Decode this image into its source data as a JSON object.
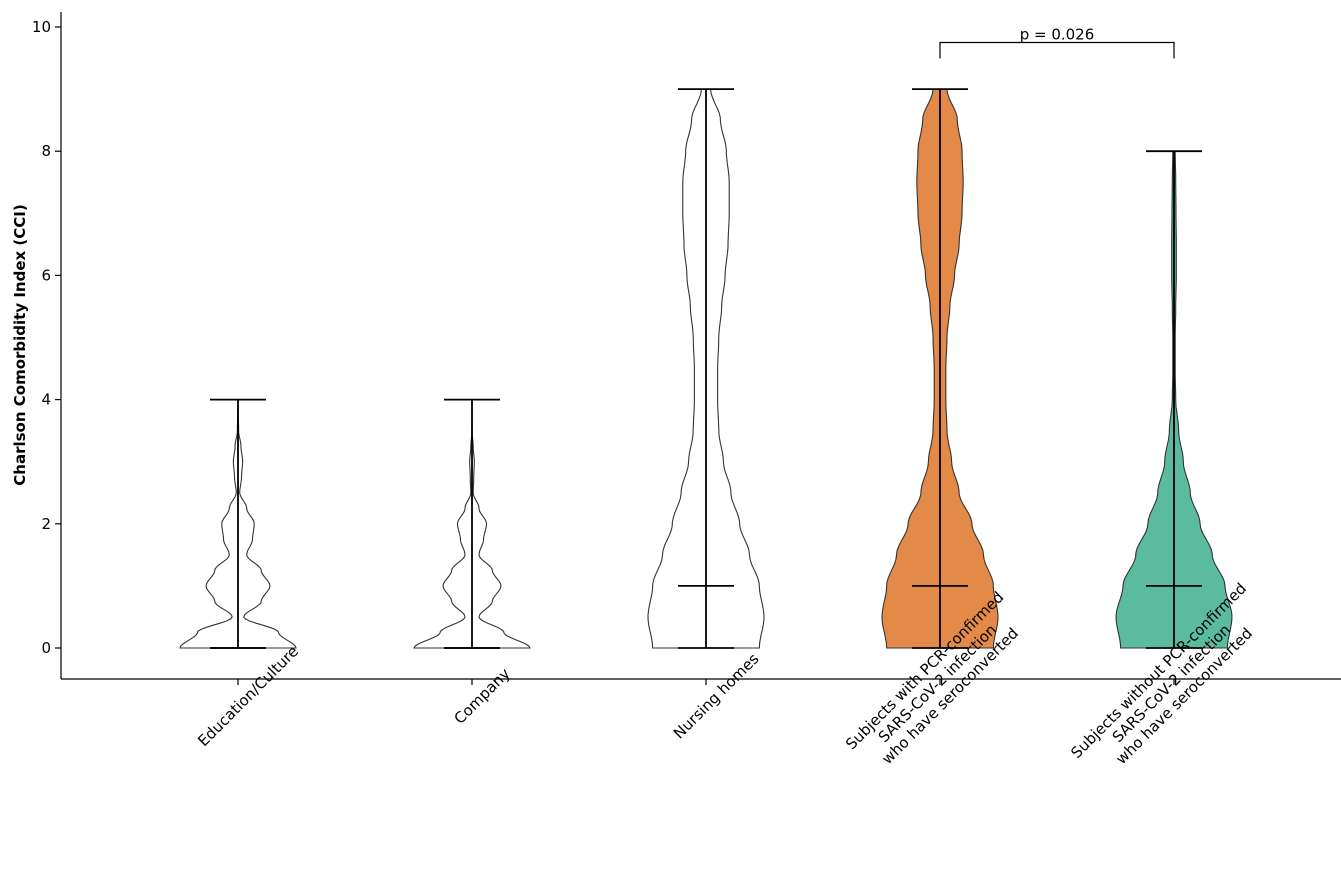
{
  "chart_data": {
    "type": "violin",
    "title": "",
    "ylabel": "Charlson Comorbidity Index (CCI)",
    "ylim": [
      -0.5,
      10.25
    ],
    "yticks": [
      0,
      2,
      4,
      6,
      8,
      10
    ],
    "categories": [
      "Education/Culture",
      "Company",
      "Nursing homes",
      "Subjects with PCR-confirmed\nSARS-CoV-2 infection\nwho have seroconverted",
      "Subjects without PCR-confirmed\nSARS-CoV-2 infection\nwho have seroconverted"
    ],
    "series": [
      {
        "fill": "none",
        "min": 0,
        "median": 0,
        "max": 4,
        "density": [
          [
            0,
            1.0
          ],
          [
            0.25,
            0.7
          ],
          [
            0.5,
            0.1
          ],
          [
            0.75,
            0.4
          ],
          [
            1,
            0.55
          ],
          [
            1.25,
            0.4
          ],
          [
            1.5,
            0.15
          ],
          [
            1.75,
            0.25
          ],
          [
            2,
            0.28
          ],
          [
            2.25,
            0.15
          ],
          [
            2.5,
            0.03
          ],
          [
            2.75,
            0.06
          ],
          [
            3,
            0.08
          ],
          [
            3.25,
            0.05
          ],
          [
            3.5,
            0.01
          ],
          [
            4,
            0.0
          ]
        ]
      },
      {
        "fill": "none",
        "min": 0,
        "median": 0,
        "max": 4,
        "density": [
          [
            0,
            1.0
          ],
          [
            0.25,
            0.55
          ],
          [
            0.5,
            0.12
          ],
          [
            0.75,
            0.35
          ],
          [
            1,
            0.5
          ],
          [
            1.25,
            0.35
          ],
          [
            1.5,
            0.12
          ],
          [
            1.75,
            0.2
          ],
          [
            2,
            0.25
          ],
          [
            2.25,
            0.12
          ],
          [
            2.5,
            0.02
          ],
          [
            2.75,
            0.03
          ],
          [
            3,
            0.04
          ],
          [
            3.25,
            0.02
          ],
          [
            3.5,
            0.0
          ],
          [
            4,
            0.0
          ]
        ]
      },
      {
        "fill": "none",
        "min": 0,
        "median": 1,
        "max": 9,
        "density": [
          [
            0,
            0.92
          ],
          [
            0.5,
            1.0
          ],
          [
            1,
            0.92
          ],
          [
            1.5,
            0.75
          ],
          [
            2,
            0.58
          ],
          [
            2.5,
            0.43
          ],
          [
            3,
            0.3
          ],
          [
            3.5,
            0.22
          ],
          [
            4,
            0.2
          ],
          [
            4.5,
            0.2
          ],
          [
            5,
            0.22
          ],
          [
            5.5,
            0.27
          ],
          [
            6,
            0.33
          ],
          [
            6.5,
            0.38
          ],
          [
            7,
            0.4
          ],
          [
            7.5,
            0.4
          ],
          [
            8,
            0.35
          ],
          [
            8.5,
            0.25
          ],
          [
            9,
            0.08
          ]
        ]
      },
      {
        "fill": "#e38a48",
        "min": 0,
        "median": 1,
        "max": 9,
        "density": [
          [
            0,
            0.92
          ],
          [
            0.5,
            1.0
          ],
          [
            1,
            0.92
          ],
          [
            1.5,
            0.75
          ],
          [
            2,
            0.55
          ],
          [
            2.5,
            0.33
          ],
          [
            3,
            0.2
          ],
          [
            3.5,
            0.12
          ],
          [
            4,
            0.1
          ],
          [
            4.5,
            0.1
          ],
          [
            5,
            0.12
          ],
          [
            5.5,
            0.17
          ],
          [
            6,
            0.25
          ],
          [
            6.5,
            0.33
          ],
          [
            7,
            0.38
          ],
          [
            7.5,
            0.4
          ],
          [
            8,
            0.38
          ],
          [
            8.5,
            0.3
          ],
          [
            9,
            0.12
          ]
        ]
      },
      {
        "fill": "#5bbb9e",
        "min": 0,
        "median": 1,
        "max": 8,
        "density": [
          [
            0,
            0.92
          ],
          [
            0.5,
            1.0
          ],
          [
            1,
            0.88
          ],
          [
            1.5,
            0.66
          ],
          [
            2,
            0.45
          ],
          [
            2.5,
            0.28
          ],
          [
            3,
            0.16
          ],
          [
            3.5,
            0.08
          ],
          [
            4,
            0.03
          ],
          [
            4.5,
            0.02
          ],
          [
            5,
            0.02
          ],
          [
            5.5,
            0.03
          ],
          [
            6,
            0.04
          ],
          [
            6.5,
            0.04
          ],
          [
            7,
            0.035
          ],
          [
            7.5,
            0.03
          ],
          [
            8,
            0.02
          ]
        ]
      }
    ],
    "annotations": [
      {
        "text": "p = 0.026",
        "from": 3,
        "to": 4,
        "y": 9.75
      }
    ]
  }
}
